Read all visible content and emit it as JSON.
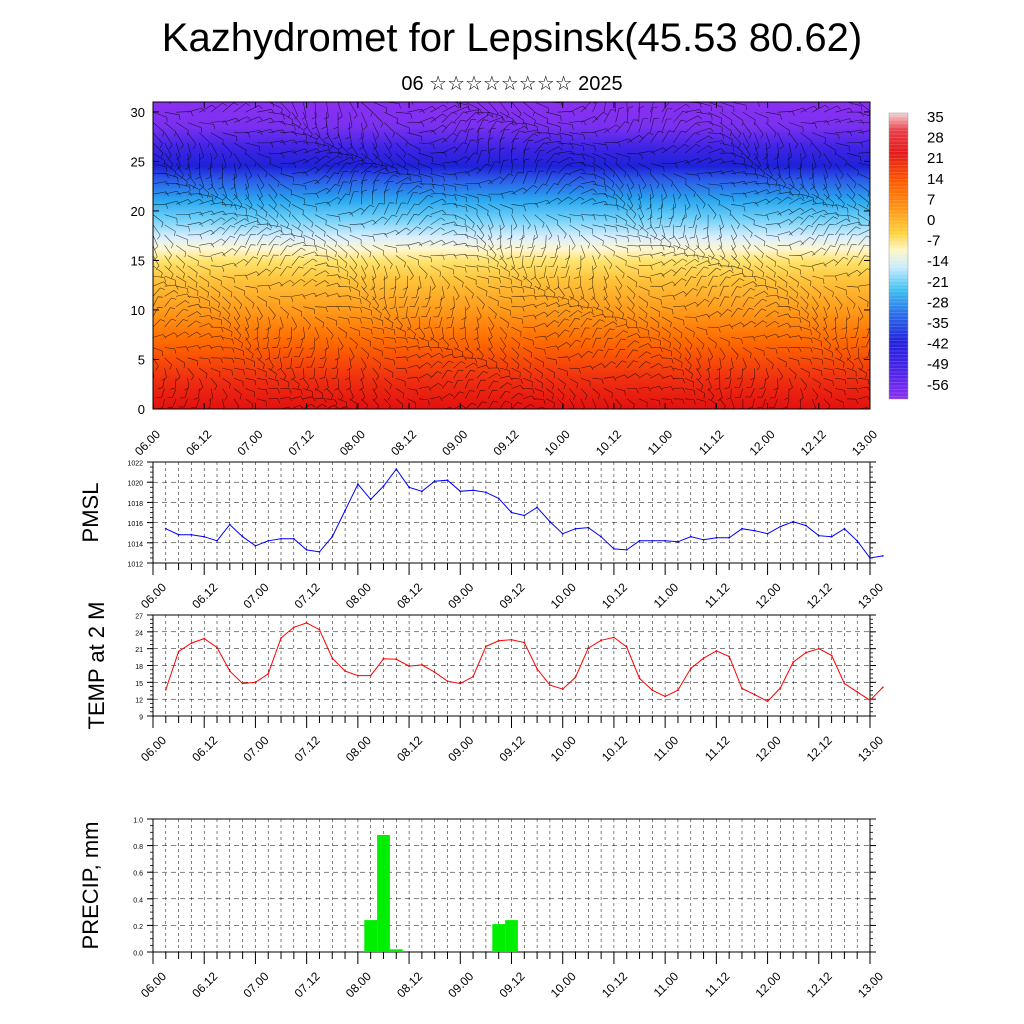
{
  "title": "Kazhydromet for Lepsinsk(45.53 80.62)",
  "subtitle": "06 ☆☆☆☆☆☆☆☆ 2025",
  "time_ticks": [
    "06.00",
    "06.12",
    "07.00",
    "07.12",
    "08.00",
    "08.12",
    "09.00",
    "09.12",
    "10.00",
    "10.12",
    "11.00",
    "11.12",
    "12.00",
    "12.12",
    "13.00"
  ],
  "chart_data": [
    {
      "type": "heatmap",
      "title": "",
      "xlabel": "",
      "ylabel": "",
      "x_ticks": [
        "06.00",
        "06.12",
        "07.00",
        "07.12",
        "08.00",
        "08.12",
        "09.00",
        "09.12",
        "10.00",
        "10.12",
        "11.00",
        "11.12",
        "12.00",
        "12.12",
        "13.00"
      ],
      "ylim": [
        0,
        31
      ],
      "y_ticks": [
        0,
        5,
        10,
        15,
        20,
        25,
        30
      ],
      "colorbar_labels": [
        "35",
        "28",
        "21",
        "14",
        "7",
        "0",
        "-7",
        "-14",
        "-21",
        "-28",
        "-35",
        "-42",
        "-49",
        "-56"
      ],
      "colorbar_colors": [
        "#f4d0d0",
        "#e32222",
        "#ff5a00",
        "#ffa020",
        "#ffdd44",
        "#fffbe0",
        "#bfe8ff",
        "#3fc0f0",
        "#2f60e6",
        "#3a1fe0",
        "#8a30f0"
      ],
      "vertical_profile_deg_c": [
        {
          "level": 0,
          "value": 30
        },
        {
          "level": 5,
          "value": 20
        },
        {
          "level": 10,
          "value": 10
        },
        {
          "level": 15,
          "value": -5
        },
        {
          "level": 20,
          "value": -28
        },
        {
          "level": 25,
          "value": -56
        },
        {
          "level": 30,
          "value": -56
        }
      ],
      "overlay": "wind barbs"
    },
    {
      "type": "line",
      "ylabel": "PMSL",
      "ylim": [
        1012,
        1022
      ],
      "y_ticks": [
        "1012",
        "1014",
        "1016",
        "1018",
        "1020",
        "1022"
      ],
      "color": "#0000ff",
      "x_step_hours": 3,
      "x_start": "06.03",
      "values": [
        1015.4,
        1014.8,
        1014.8,
        1014.6,
        1014.2,
        1015.8,
        1014.6,
        1013.7,
        1014.2,
        1014.4,
        1014.4,
        1013.3,
        1013.1,
        1014.6,
        1017.2,
        1019.8,
        1018.3,
        1019.6,
        1021.3,
        1019.5,
        1019.1,
        1020.1,
        1020.2,
        1019.1,
        1019.2,
        1019.0,
        1018.4,
        1017.0,
        1016.7,
        1017.5,
        1016.1,
        1014.9,
        1015.4,
        1015.5,
        1014.6,
        1013.4,
        1013.3,
        1014.2,
        1014.2,
        1014.2,
        1014.1,
        1014.6,
        1014.3,
        1014.5,
        1014.5,
        1015.4,
        1015.2,
        1014.9,
        1015.6,
        1016.1,
        1015.7,
        1014.7,
        1014.6,
        1015.4,
        1014.2,
        1012.5,
        1012.7
      ]
    },
    {
      "type": "line",
      "ylabel": "TEMP at 2 M",
      "ylim": [
        9,
        27
      ],
      "y_ticks": [
        "9",
        "12",
        "15",
        "18",
        "21",
        "24",
        "27"
      ],
      "color": "#ff0000",
      "x_step_hours": 3,
      "x_start": "06.03",
      "values": [
        13.7,
        20.5,
        22.0,
        22.8,
        21.2,
        17.0,
        14.8,
        15.0,
        16.5,
        22.9,
        24.8,
        25.6,
        24.4,
        19.3,
        17.0,
        16.2,
        16.2,
        19.2,
        19.1,
        17.9,
        18.1,
        16.8,
        15.2,
        14.8,
        16.0,
        21.4,
        22.4,
        22.6,
        22.1,
        17.4,
        14.5,
        13.8,
        15.9,
        21.1,
        22.5,
        23.0,
        21.3,
        15.7,
        13.6,
        12.5,
        13.6,
        17.5,
        19.3,
        20.6,
        19.6,
        13.9,
        12.8,
        11.6,
        14.0,
        18.6,
        20.3,
        21.0,
        19.8,
        14.8,
        13.3,
        11.8,
        14.1
      ]
    },
    {
      "type": "bar",
      "ylabel": "PRECIP, mm",
      "ylim": [
        0,
        1.0
      ],
      "y_ticks": [
        "0.0",
        "0.2",
        "0.4",
        "0.6",
        "0.8",
        "1.0"
      ],
      "color": "#00ee00",
      "x_step_hours": 3,
      "bars": [
        {
          "x": "08.03",
          "value": 0.24
        },
        {
          "x": "08.06",
          "value": 0.88
        },
        {
          "x": "08.09",
          "value": 0.02
        },
        {
          "x": "09.09",
          "value": 0.21
        },
        {
          "x": "09.12",
          "value": 0.24
        }
      ]
    }
  ]
}
